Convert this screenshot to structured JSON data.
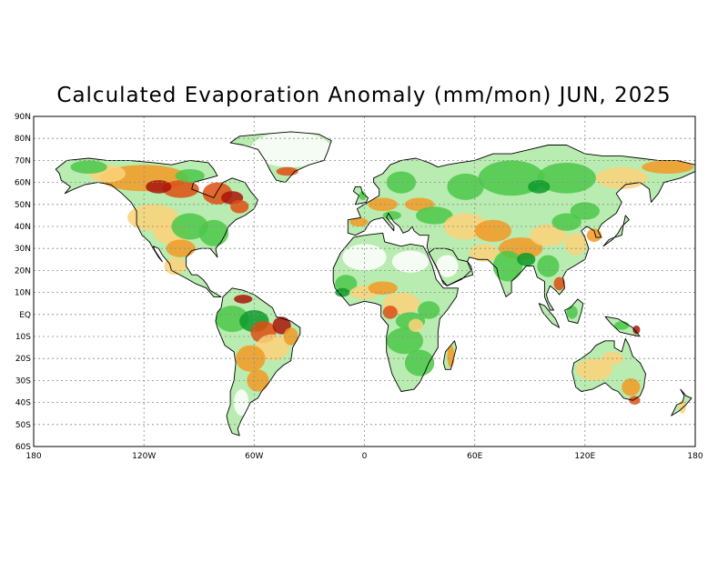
{
  "title": "Calculated Evaporation Anomaly (mm/mon) JUN, 2025",
  "axes": {
    "x_ticks": [
      "180",
      "120W",
      "60W",
      "0",
      "60E",
      "120E",
      "180"
    ],
    "y_ticks": [
      "90N",
      "80N",
      "70N",
      "60N",
      "50N",
      "40N",
      "30N",
      "20N",
      "10N",
      "EQ",
      "10S",
      "20S",
      "30S",
      "40S",
      "50S",
      "60S"
    ],
    "x_range": [
      -180,
      180
    ],
    "y_range": [
      -60,
      90
    ],
    "grid": "dotted, every 60 degrees longitude and 10 degrees latitude"
  },
  "colors": {
    "strong_positive": "#0a9a2a",
    "positive": "#4cc84a",
    "weak_positive": "#b9ecb0",
    "neutral": "#ffffff",
    "weak_negative": "#fbd27a",
    "negative": "#f39a26",
    "strong_negative": "#df4d12",
    "extreme_negative": "#a8140a"
  }
}
